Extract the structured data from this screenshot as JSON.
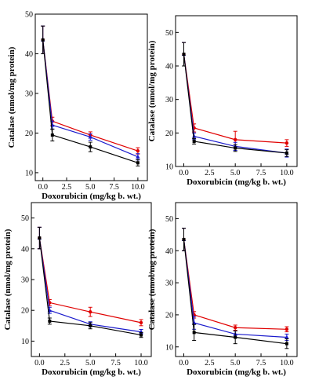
{
  "figure": {
    "background": "#ffffff"
  },
  "chart_data": [
    {
      "type": "line",
      "xlabel": "Doxorubicin (mg/kg b. wt.)",
      "ylabel": "Catalase (nmol/mg protein)",
      "xlim": [
        -0.8,
        11
      ],
      "ylim": [
        8,
        50
      ],
      "xticks": [
        "0.0",
        "2.5",
        "5.0",
        "7.5",
        "10.0"
      ],
      "yticks": [
        "10",
        "20",
        "30",
        "40",
        "50"
      ],
      "x": [
        0,
        1,
        5,
        10
      ],
      "series": [
        {
          "color": "#e00000",
          "marker": "circle",
          "values": [
            43.5,
            23.0,
            19.5,
            15.5
          ],
          "errors": [
            3.5,
            1.0,
            0.8,
            0.8
          ]
        },
        {
          "color": "#1a1acc",
          "marker": "triangle",
          "values": [
            43.5,
            22.0,
            19.0,
            14.0
          ],
          "errors": [
            3.5,
            1.0,
            0.8,
            0.8
          ]
        },
        {
          "color": "#000000",
          "marker": "square",
          "values": [
            43.5,
            19.5,
            16.5,
            12.5
          ],
          "errors": [
            3.5,
            1.5,
            1.2,
            0.8
          ]
        }
      ]
    },
    {
      "type": "line",
      "xlabel": "Doxorubicin (mg/kg b. wt.)",
      "ylabel": "Catalase (nmol/mg protein)",
      "xlim": [
        -0.8,
        11
      ],
      "ylim": [
        10,
        55
      ],
      "xticks": [
        "0.0",
        "2.5",
        "5.0",
        "7.5",
        "10.0"
      ],
      "yticks": [
        "10",
        "20",
        "30",
        "40",
        "50"
      ],
      "x": [
        0,
        1,
        5,
        10
      ],
      "series": [
        {
          "color": "#e00000",
          "marker": "circle",
          "values": [
            43.5,
            21.5,
            18.0,
            17.0
          ],
          "errors": [
            3.5,
            1.2,
            2.5,
            1.0
          ]
        },
        {
          "color": "#1a1acc",
          "marker": "triangle",
          "values": [
            43.5,
            19.0,
            16.0,
            14.0
          ],
          "errors": [
            3.5,
            1.0,
            1.2,
            1.2
          ]
        },
        {
          "color": "#000000",
          "marker": "square",
          "values": [
            43.5,
            17.5,
            15.5,
            14.0
          ],
          "errors": [
            3.5,
            0.8,
            1.0,
            1.0
          ]
        }
      ]
    },
    {
      "type": "line",
      "xlabel": "Doxorubicin (mg/kg b. wt.)",
      "ylabel": "Catalase (nmol/mg protein)",
      "xlim": [
        -0.8,
        11
      ],
      "ylim": [
        5,
        55
      ],
      "xticks": [
        "0.0",
        "2.5",
        "5.0",
        "7.5",
        "10.0"
      ],
      "yticks": [
        "10",
        "20",
        "30",
        "40",
        "50"
      ],
      "x": [
        0,
        1,
        5,
        10
      ],
      "series": [
        {
          "color": "#e00000",
          "marker": "circle",
          "values": [
            43.5,
            22.5,
            19.5,
            16.0
          ],
          "errors": [
            3.5,
            1.0,
            1.5,
            1.0
          ]
        },
        {
          "color": "#1a1acc",
          "marker": "triangle",
          "values": [
            43.5,
            20.0,
            15.5,
            13.0
          ],
          "errors": [
            3.5,
            1.0,
            0.8,
            0.8
          ]
        },
        {
          "color": "#000000",
          "marker": "square",
          "values": [
            43.5,
            16.5,
            15.0,
            12.0
          ],
          "errors": [
            3.5,
            1.0,
            1.0,
            0.8
          ]
        }
      ]
    },
    {
      "type": "line",
      "xlabel": "Doxorubicin (mg/kg b. wt.)",
      "ylabel": "Catalase (nmol/mg protein)",
      "xlim": [
        -0.8,
        11
      ],
      "ylim": [
        7,
        55
      ],
      "xticks": [
        "0.0",
        "2.5",
        "5.0",
        "7.5",
        "10.0"
      ],
      "yticks": [
        "10",
        "20",
        "30",
        "40",
        "50"
      ],
      "x": [
        0,
        1,
        5,
        10
      ],
      "series": [
        {
          "color": "#e00000",
          "marker": "circle",
          "values": [
            43.5,
            20.0,
            16.0,
            15.5
          ],
          "errors": [
            3.5,
            1.0,
            0.8,
            0.8
          ]
        },
        {
          "color": "#1a1acc",
          "marker": "triangle",
          "values": [
            43.5,
            17.5,
            14.0,
            13.0
          ],
          "errors": [
            3.5,
            2.0,
            1.0,
            1.0
          ]
        },
        {
          "color": "#000000",
          "marker": "square",
          "values": [
            43.5,
            14.5,
            13.0,
            11.0
          ],
          "errors": [
            3.5,
            2.5,
            2.0,
            1.5
          ]
        }
      ]
    }
  ]
}
